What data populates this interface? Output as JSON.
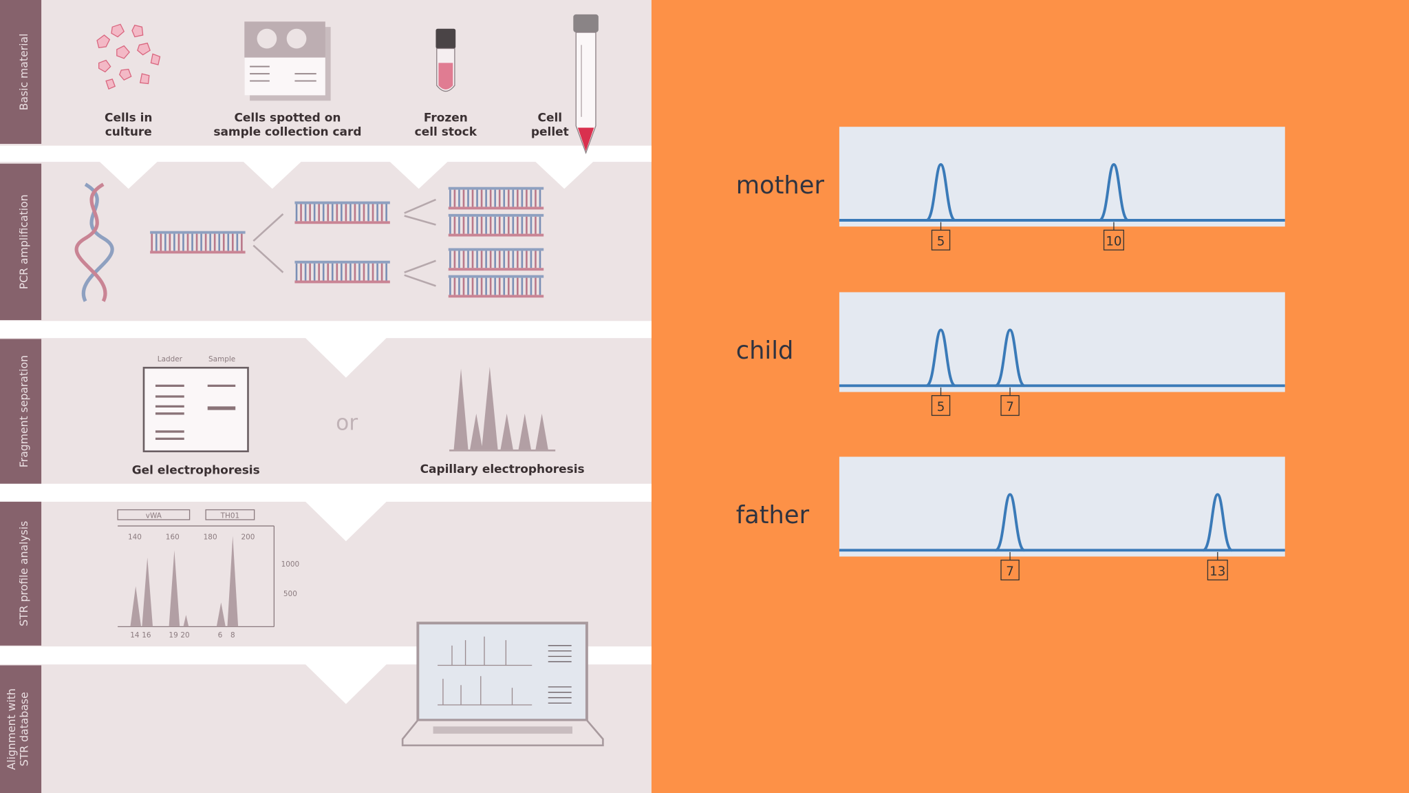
{
  "workflow": {
    "stages": [
      "Basic material",
      "PCR amplification",
      "Fragment separation",
      "STR profile analysis",
      "Alignment with STR database"
    ],
    "materials": [
      {
        "caption": [
          "Cells in",
          "culture"
        ]
      },
      {
        "caption": [
          "Cells spotted on",
          "sample collection card"
        ]
      },
      {
        "caption": [
          "Frozen",
          "cell stock"
        ]
      },
      {
        "caption": [
          "Cell",
          "pellet"
        ]
      }
    ],
    "separation": {
      "gel": {
        "columns": [
          "Ladder",
          "Sample"
        ],
        "caption": "Gel electrophoresis"
      },
      "or": "or",
      "capillary": {
        "caption": "Capillary electrophoresis"
      }
    },
    "str_profile": {
      "loci": [
        "vWA",
        "TH01"
      ],
      "x_ticks": [
        "140",
        "160",
        "180",
        "200"
      ],
      "y_ticks": [
        "1000",
        "500"
      ],
      "allele_labels": [
        "14",
        "16",
        "19",
        "20",
        "6",
        "8"
      ]
    }
  },
  "str_profiles": {
    "rows": [
      {
        "name": "mother",
        "alleles": [
          5,
          10
        ]
      },
      {
        "name": "child",
        "alleles": [
          5,
          7
        ]
      },
      {
        "name": "father",
        "alleles": [
          7,
          13
        ]
      }
    ]
  }
}
